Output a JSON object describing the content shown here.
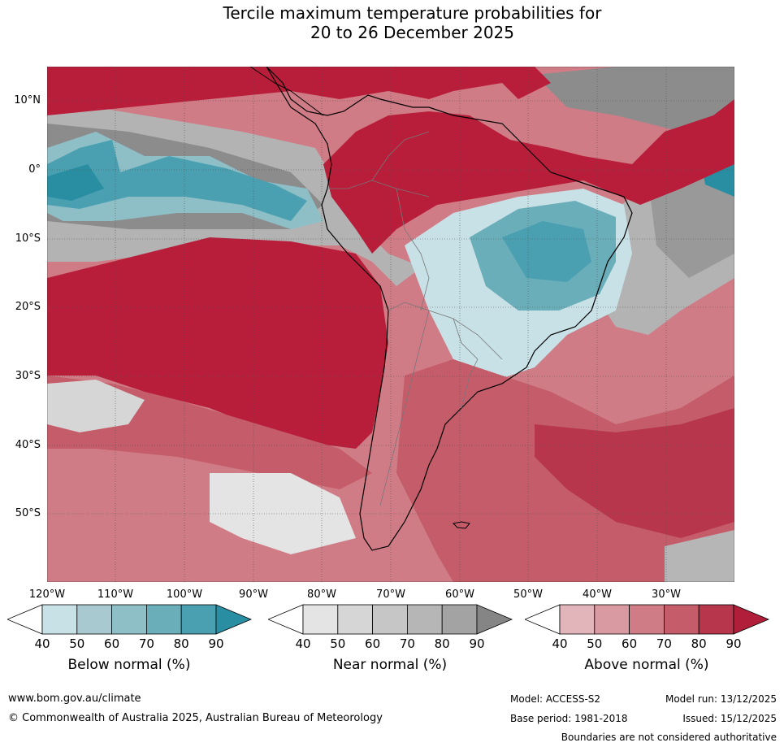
{
  "title_line1": "Tercile maximum temperature probabilities for",
  "title_line2": "20 to 26 December 2025",
  "lat_labels": [
    "10°N",
    "0°",
    "10°S",
    "20°S",
    "30°S",
    "40°S",
    "50°S"
  ],
  "lon_labels": [
    "120°W",
    "110°W",
    "100°W",
    "90°W",
    "80°W",
    "70°W",
    "60°W",
    "50°W",
    "40°W",
    "30°W"
  ],
  "colorbars": [
    {
      "title": "Below normal (%)",
      "ticks": [
        "40",
        "50",
        "60",
        "70",
        "80",
        "90"
      ],
      "colors": [
        "#c8e1e7",
        "#a7c9cf",
        "#8ebfc6",
        "#6aaeb9",
        "#4aa0b1",
        "#2a8ea3"
      ]
    },
    {
      "title": "Near normal (%)",
      "ticks": [
        "40",
        "50",
        "60",
        "70",
        "80",
        "90"
      ],
      "colors": [
        "#e4e4e4",
        "#d6d6d6",
        "#c6c6c6",
        "#b6b6b6",
        "#a3a3a3",
        "#858585"
      ]
    },
    {
      "title": "Above normal (%)",
      "ticks": [
        "40",
        "50",
        "60",
        "70",
        "80",
        "90"
      ],
      "colors": [
        "#e2b5bb",
        "#d99aa2",
        "#d07c86",
        "#c45c6a",
        "#b8364b",
        "#b01e3a"
      ]
    }
  ],
  "colors": {
    "above_strong": "#b81e3a",
    "above_mid": "#cc6a76",
    "above_light": "#dfa8b0",
    "below_strong": "#2b90a5",
    "below_mid": "#6aaeb9",
    "below_light": "#c8e1e7",
    "near_strong": "#8c8c8c",
    "near_mid": "#b3b3b3",
    "near_light": "#dadada"
  },
  "footer": {
    "url": "www.bom.gov.au/climate",
    "copyright": "© Commonwealth of Australia 2025, Australian Bureau of Meteorology",
    "model": "Model: ACCESS-S2",
    "model_run": "Model run: 13/12/2025",
    "base_period": "Base period: 1981-2018",
    "issued": "Issued: 15/12/2025",
    "disclaimer": "Boundaries are not considered authoritative"
  }
}
